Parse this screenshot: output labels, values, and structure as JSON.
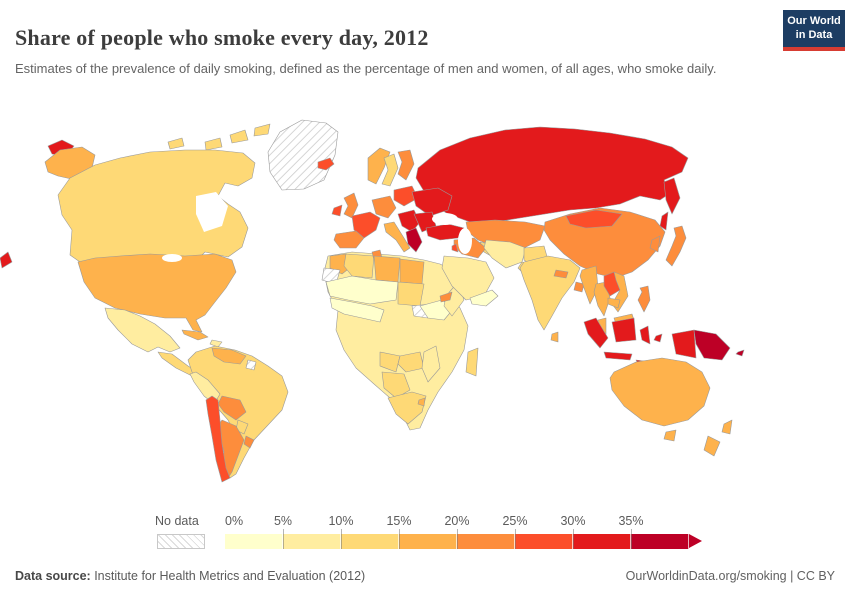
{
  "header": {
    "title": "Share of people who smoke every day, 2012",
    "subtitle": "Estimates of the prevalence of daily smoking, defined as the percentage of men and women, of all ages, who smoke daily.",
    "logo": {
      "line1": "Our World",
      "line2": "in Data",
      "bg_color": "#1d3d63",
      "accent_color": "#d73c32"
    }
  },
  "legend": {
    "no_data_label": "No data",
    "tick_labels": [
      "0%",
      "5%",
      "10%",
      "15%",
      "20%",
      "25%",
      "30%",
      "35%"
    ]
  },
  "footer": {
    "source_label": "Data source:",
    "source_text": " Institute for Health Metrics and Evaluation (2012)",
    "right_text": "OurWorldinData.org/smoking | CC BY"
  },
  "chart_data": {
    "type": "choropleth",
    "title": "Share of people who smoke every day",
    "year": 2012,
    "unit": "%",
    "legend_position": "bottom",
    "border_color": "#9a9a9a",
    "ocean_color": "#ffffff",
    "bins": [
      {
        "range": "0-5%",
        "color": "#ffffcc"
      },
      {
        "range": "5-10%",
        "color": "#ffeda0"
      },
      {
        "range": "10-15%",
        "color": "#fed976"
      },
      {
        "range": "15-20%",
        "color": "#feb24c"
      },
      {
        "range": "20-25%",
        "color": "#fd8d3c"
      },
      {
        "range": "25-30%",
        "color": "#fc4e2a"
      },
      {
        "range": "30-35%",
        "color": "#e31a1c"
      },
      {
        "range": ">35%",
        "color": "#bd0026"
      }
    ],
    "regions": [
      {
        "name": "greenland",
        "range": "no-data"
      },
      {
        "name": "canada-arctic-1",
        "range": "10-15%"
      },
      {
        "name": "canada-arctic-2",
        "range": "10-15%"
      },
      {
        "name": "canada-arctic-3",
        "range": "10-15%"
      },
      {
        "name": "canada-arctic-4",
        "range": "10-15%"
      },
      {
        "name": "chukotka",
        "range": "30-35%"
      },
      {
        "name": "chukotka-west-sliver",
        "range": "30-35%"
      },
      {
        "name": "alaska",
        "range": "15-20%"
      },
      {
        "name": "canada",
        "range": "10-15%"
      },
      {
        "name": "usa",
        "range": "15-20%"
      },
      {
        "name": "mexico",
        "range": "5-10%"
      },
      {
        "name": "central-america",
        "range": "10-15%"
      },
      {
        "name": "cuba",
        "range": "15-20%"
      },
      {
        "name": "hispaniola",
        "range": "5-10%"
      },
      {
        "name": "south-america",
        "range": "10-15%"
      },
      {
        "name": "venezuela",
        "range": "15-20%"
      },
      {
        "name": "french-guiana",
        "range": "no-data"
      },
      {
        "name": "peru",
        "range": "5-10%"
      },
      {
        "name": "bolivia",
        "range": "20-25%"
      },
      {
        "name": "paraguay",
        "range": "10-15%"
      },
      {
        "name": "argentina",
        "range": "20-25%"
      },
      {
        "name": "uruguay",
        "range": "20-25%"
      },
      {
        "name": "chile",
        "range": "25-30%"
      },
      {
        "name": "africa",
        "range": "5-10%"
      },
      {
        "name": "morocco",
        "range": "15-20%"
      },
      {
        "name": "western-sahara",
        "range": "no-data"
      },
      {
        "name": "algeria",
        "range": "10-15%"
      },
      {
        "name": "tunisia",
        "range": "20-25%"
      },
      {
        "name": "libya",
        "range": "15-20%"
      },
      {
        "name": "egypt",
        "range": "15-20%"
      },
      {
        "name": "sahel",
        "range": "0-5%"
      },
      {
        "name": "sudan",
        "range": "10-15%"
      },
      {
        "name": "south-sudan",
        "range": "no-data"
      },
      {
        "name": "ethiopia",
        "range": "0-5%"
      },
      {
        "name": "somalia",
        "range": "5-10%"
      },
      {
        "name": "eritrea",
        "range": "20-25%"
      },
      {
        "name": "west-africa",
        "range": "0-5%"
      },
      {
        "name": "angola",
        "range": "10-15%"
      },
      {
        "name": "zambia-zimbabwe",
        "range": "10-15%"
      },
      {
        "name": "mozambique",
        "range": "5-10%"
      },
      {
        "name": "namibia-botswana",
        "range": "10-15%"
      },
      {
        "name": "south-africa",
        "range": "10-15%"
      },
      {
        "name": "swaziland",
        "range": "15-20%"
      },
      {
        "name": "madagascar",
        "range": "10-15%"
      },
      {
        "name": "russia",
        "range": "30-35%"
      },
      {
        "name": "kamchatka",
        "range": "30-35%"
      },
      {
        "name": "sakhalin",
        "range": "30-35%"
      },
      {
        "name": "iceland",
        "range": "25-30%"
      },
      {
        "name": "norway",
        "range": "15-20%"
      },
      {
        "name": "sweden",
        "range": "10-15%"
      },
      {
        "name": "finland",
        "range": "20-25%"
      },
      {
        "name": "uk",
        "range": "20-25%"
      },
      {
        "name": "ireland",
        "range": "25-30%"
      },
      {
        "name": "france",
        "range": "25-30%"
      },
      {
        "name": "iberia",
        "range": "20-25%"
      },
      {
        "name": "central-europe",
        "range": "20-25%"
      },
      {
        "name": "italy",
        "range": "15-20%"
      },
      {
        "name": "poland-baltics",
        "range": "25-30%"
      },
      {
        "name": "eastern-europe",
        "range": "30-35%"
      },
      {
        "name": "balkans",
        "range": "30-35%"
      },
      {
        "name": "romania-bulgaria",
        "range": "30-35%"
      },
      {
        "name": "greece",
        "range": ">35%"
      },
      {
        "name": "turkey",
        "range": "30-35%"
      },
      {
        "name": "kazakhstan",
        "range": "20-25%"
      },
      {
        "name": "central-asia",
        "range": "10-15%"
      },
      {
        "name": "syria-iraq",
        "range": "20-25%"
      },
      {
        "name": "levant",
        "range": "25-30%"
      },
      {
        "name": "saudi-arabia",
        "range": "5-10%"
      },
      {
        "name": "yemen-oman",
        "range": "0-5%"
      },
      {
        "name": "iran",
        "range": "5-10%"
      },
      {
        "name": "afghanistan",
        "range": "10-15%"
      },
      {
        "name": "pakistan",
        "range": "10-15%"
      },
      {
        "name": "india",
        "range": "10-15%"
      },
      {
        "name": "nepal",
        "range": "20-25%"
      },
      {
        "name": "bangladesh",
        "range": "20-25%"
      },
      {
        "name": "sri-lanka",
        "range": "15-20%"
      },
      {
        "name": "china",
        "range": "20-25%"
      },
      {
        "name": "mongolia",
        "range": "25-30%"
      },
      {
        "name": "korea",
        "range": "20-25%"
      },
      {
        "name": "japan",
        "range": "20-25%"
      },
      {
        "name": "myanmar",
        "range": "15-20%"
      },
      {
        "name": "thailand",
        "range": "15-20%"
      },
      {
        "name": "laos",
        "range": "25-30%"
      },
      {
        "name": "vietnam",
        "range": "15-20%"
      },
      {
        "name": "cambodia",
        "range": "15-20%"
      },
      {
        "name": "malaysia-peninsula",
        "range": "15-20%"
      },
      {
        "name": "philippines",
        "range": "20-25%"
      },
      {
        "name": "sumatra",
        "range": "30-35%"
      },
      {
        "name": "java",
        "range": "30-35%"
      },
      {
        "name": "borneo-malaysia",
        "range": "15-20%"
      },
      {
        "name": "borneo-indonesia",
        "range": "30-35%"
      },
      {
        "name": "sulawesi",
        "range": "30-35%"
      },
      {
        "name": "lesser-sunda",
        "range": "30-35%"
      },
      {
        "name": "maluku",
        "range": "30-35%"
      },
      {
        "name": "west-papua",
        "range": "30-35%"
      },
      {
        "name": "papua-new-guinea",
        "range": ">35%"
      },
      {
        "name": "solomon-islands",
        "range": ">35%"
      },
      {
        "name": "australia",
        "range": "15-20%"
      },
      {
        "name": "tasmania",
        "range": "15-20%"
      },
      {
        "name": "new-zealand-north",
        "range": "15-20%"
      },
      {
        "name": "new-zealand-south",
        "range": "15-20%"
      }
    ]
  }
}
